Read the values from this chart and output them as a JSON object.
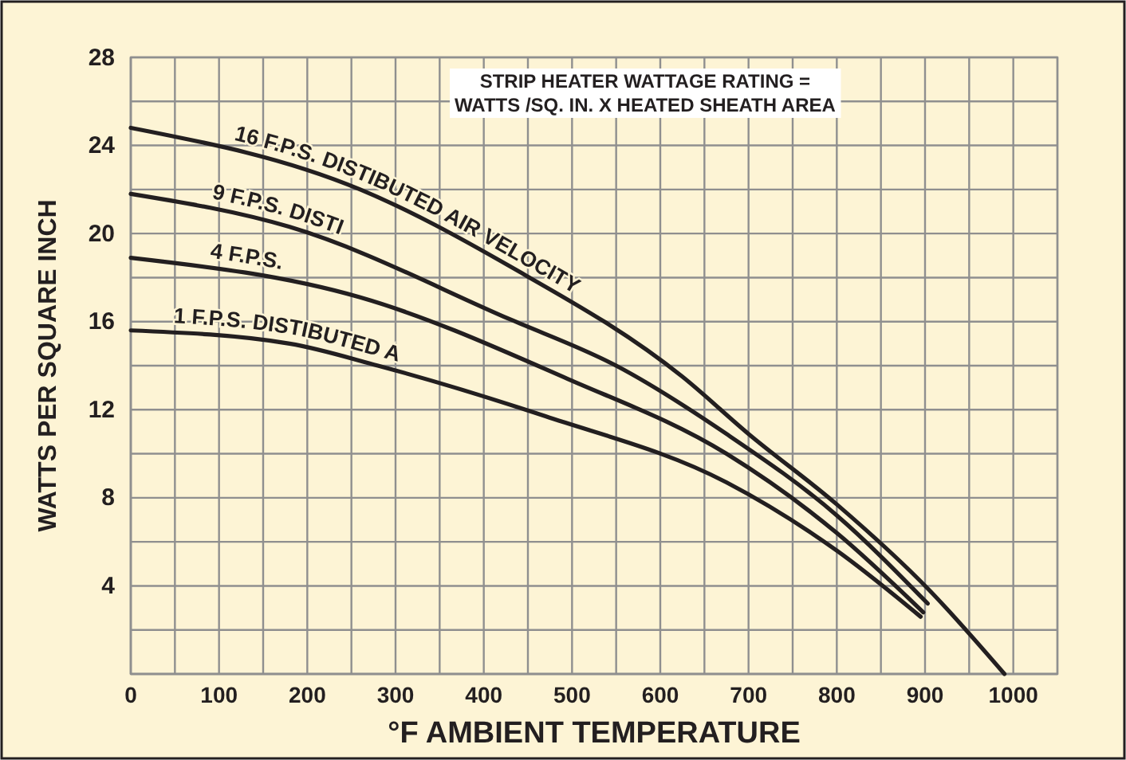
{
  "chart_data": {
    "type": "line",
    "xlabel": "°F AMBIENT TEMPERATURE",
    "ylabel": "WATTS PER SQUARE INCH",
    "annotations": [
      "STRIP HEATER WATTAGE RATING =\nWATTS /SQ. IN. X HEATED SHEATH AREA"
    ],
    "xlim": [
      0,
      1050
    ],
    "ylim": [
      0,
      28
    ],
    "xticks": [
      0,
      {
        "value": 50,
        "label": null
      },
      100,
      {
        "value": 150,
        "label": null
      },
      200,
      {
        "value": 250,
        "label": null
      },
      300,
      {
        "value": 350,
        "label": null
      },
      400,
      {
        "value": 450,
        "label": null
      },
      500,
      {
        "value": 550,
        "label": null
      },
      600,
      {
        "value": 650,
        "label": null
      },
      700,
      {
        "value": 750,
        "label": null
      },
      800,
      {
        "value": 850,
        "label": null
      },
      900,
      {
        "value": 950,
        "label": null
      },
      1000,
      {
        "value": 1050,
        "label": null
      }
    ],
    "yticks": [
      {
        "value": 0,
        "label": null
      },
      {
        "value": 2,
        "label": null
      },
      4,
      {
        "value": 6,
        "label": null
      },
      8,
      {
        "value": 10,
        "label": null
      },
      12,
      {
        "value": 14,
        "label": null
      },
      16,
      {
        "value": 18,
        "label": null
      },
      20,
      {
        "value": 22,
        "label": null
      },
      24,
      {
        "value": 26,
        "label": null
      },
      28
    ],
    "grid": true,
    "marker": "none",
    "line_style": "solid",
    "series": [
      {
        "name": "16 F.P.S. DISTIBUTED AIR VELOCITY",
        "color": "#231f20",
        "x": [
          0,
          260,
          430,
          625,
          700,
          800,
          905,
          990
        ],
        "values": [
          24.8,
          22.0,
          18.5,
          13.5,
          10.9,
          7.7,
          3.8,
          0
        ]
      },
      {
        "name": "9 F.P.S. DISTI",
        "color": "#231f20",
        "x": [
          0,
          180,
          430,
          550,
          675,
          800,
          903
        ],
        "values": [
          21.8,
          20.3,
          16.1,
          14.0,
          10.9,
          7.2,
          3.2
        ]
      },
      {
        "name": "4 F.P.S.",
        "color": "#231f20",
        "x": [
          0,
          260,
          495,
          675,
          800,
          898
        ],
        "values": [
          18.9,
          17.1,
          13.4,
          10.0,
          6.4,
          2.8
        ]
      },
      {
        "name": "1 F.P.S. DISTIBUTED A",
        "color": "#231f20",
        "x": [
          0,
          180,
          280,
          470,
          675,
          800,
          895
        ],
        "values": [
          15.6,
          15.0,
          14.0,
          11.7,
          8.7,
          5.6,
          2.6
        ]
      }
    ]
  }
}
